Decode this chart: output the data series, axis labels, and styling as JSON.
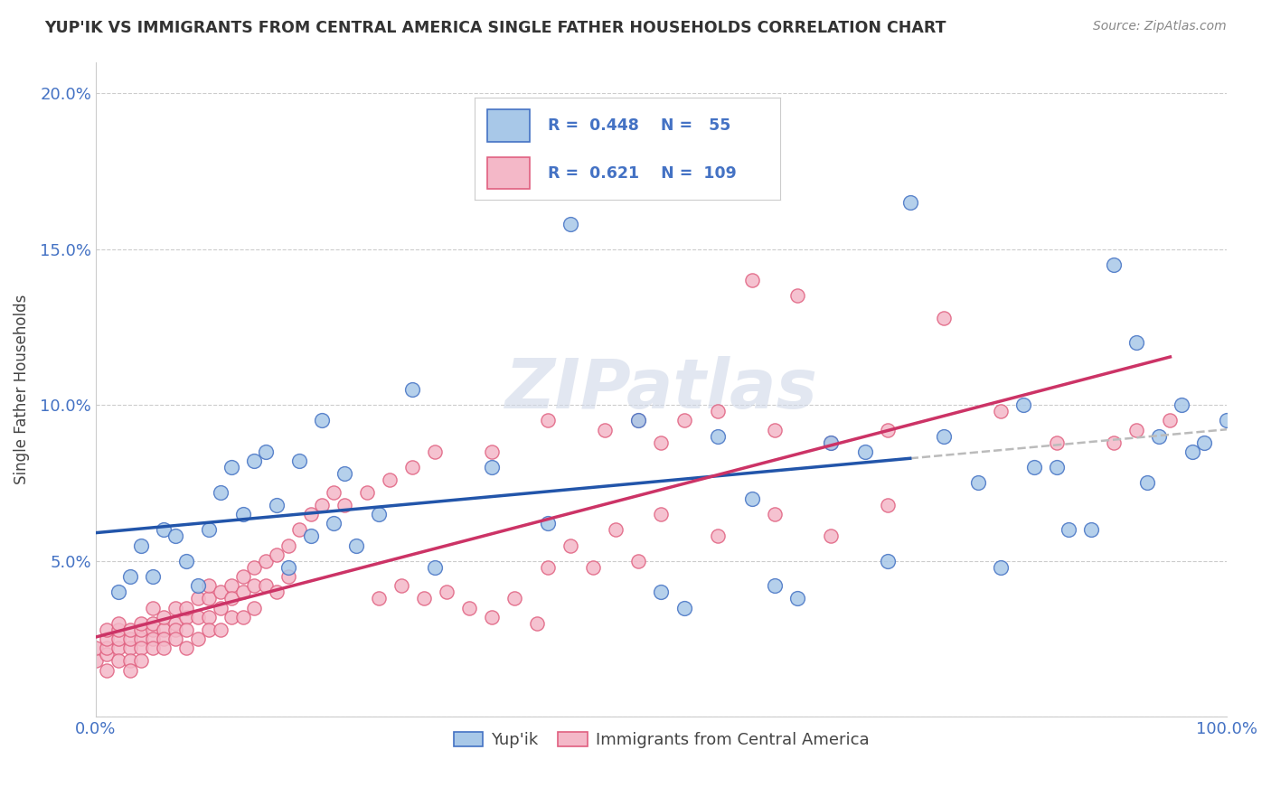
{
  "title": "YUP'IK VS IMMIGRANTS FROM CENTRAL AMERICA SINGLE FATHER HOUSEHOLDS CORRELATION CHART",
  "source": "Source: ZipAtlas.com",
  "ylabel": "Single Father Households",
  "xlim": [
    0,
    1.0
  ],
  "ylim": [
    0,
    0.21
  ],
  "yticks": [
    0.0,
    0.05,
    0.1,
    0.15,
    0.2
  ],
  "ytick_labels": [
    "",
    "5.0%",
    "10.0%",
    "15.0%",
    "20.0%"
  ],
  "xticks": [
    0.0,
    0.25,
    0.5,
    0.75,
    1.0
  ],
  "xtick_labels": [
    "0.0%",
    "",
    "",
    "",
    "100.0%"
  ],
  "legend_blue_R": "0.448",
  "legend_blue_N": "55",
  "legend_pink_R": "0.621",
  "legend_pink_N": "109",
  "blue_fill": "#a8c8e8",
  "blue_edge": "#4472c4",
  "pink_fill": "#f4b8c8",
  "pink_edge": "#e06080",
  "blue_line": "#2255aa",
  "pink_line": "#cc3366",
  "dash_line": "#bbbbbb",
  "watermark_color": "#d0d8e8",
  "blue_x": [
    0.02,
    0.04,
    0.05,
    0.06,
    0.08,
    0.1,
    0.12,
    0.13,
    0.14,
    0.15,
    0.17,
    0.2,
    0.22,
    0.23,
    0.25,
    0.3,
    0.42,
    0.5,
    0.52,
    0.55,
    0.58,
    0.6,
    0.62,
    0.65,
    0.68,
    0.7,
    0.72,
    0.75,
    0.8,
    0.82,
    0.85,
    0.88,
    0.9,
    0.92,
    0.94,
    0.96,
    0.98,
    1.0,
    0.03,
    0.07,
    0.09,
    0.11,
    0.16,
    0.18,
    0.19,
    0.21,
    0.28,
    0.35,
    0.4,
    0.48,
    0.78,
    0.83,
    0.86,
    0.93,
    0.97
  ],
  "blue_y": [
    0.04,
    0.055,
    0.045,
    0.06,
    0.05,
    0.06,
    0.08,
    0.065,
    0.082,
    0.085,
    0.048,
    0.095,
    0.078,
    0.055,
    0.065,
    0.048,
    0.158,
    0.04,
    0.035,
    0.09,
    0.07,
    0.042,
    0.038,
    0.088,
    0.085,
    0.05,
    0.165,
    0.09,
    0.048,
    0.1,
    0.08,
    0.06,
    0.145,
    0.12,
    0.09,
    0.1,
    0.088,
    0.095,
    0.045,
    0.058,
    0.042,
    0.072,
    0.068,
    0.082,
    0.058,
    0.062,
    0.105,
    0.08,
    0.062,
    0.095,
    0.075,
    0.08,
    0.06,
    0.075,
    0.085
  ],
  "pink_x": [
    0.0,
    0.0,
    0.01,
    0.01,
    0.01,
    0.01,
    0.01,
    0.02,
    0.02,
    0.02,
    0.02,
    0.02,
    0.03,
    0.03,
    0.03,
    0.03,
    0.03,
    0.04,
    0.04,
    0.04,
    0.04,
    0.04,
    0.05,
    0.05,
    0.05,
    0.05,
    0.05,
    0.06,
    0.06,
    0.06,
    0.06,
    0.07,
    0.07,
    0.07,
    0.07,
    0.08,
    0.08,
    0.08,
    0.08,
    0.09,
    0.09,
    0.09,
    0.1,
    0.1,
    0.1,
    0.1,
    0.11,
    0.11,
    0.11,
    0.12,
    0.12,
    0.12,
    0.13,
    0.13,
    0.13,
    0.14,
    0.14,
    0.14,
    0.15,
    0.15,
    0.16,
    0.16,
    0.17,
    0.17,
    0.18,
    0.19,
    0.2,
    0.21,
    0.22,
    0.24,
    0.26,
    0.28,
    0.3,
    0.35,
    0.4,
    0.45,
    0.48,
    0.5,
    0.52,
    0.55,
    0.58,
    0.6,
    0.62,
    0.65,
    0.7,
    0.75,
    0.8,
    0.85,
    0.9,
    0.92,
    0.95,
    0.5,
    0.55,
    0.6,
    0.65,
    0.7,
    0.4,
    0.42,
    0.44,
    0.46,
    0.48,
    0.25,
    0.27,
    0.29,
    0.31,
    0.33,
    0.35,
    0.37,
    0.39
  ],
  "pink_y": [
    0.018,
    0.022,
    0.02,
    0.022,
    0.025,
    0.028,
    0.015,
    0.022,
    0.025,
    0.028,
    0.018,
    0.03,
    0.022,
    0.025,
    0.028,
    0.018,
    0.015,
    0.025,
    0.028,
    0.022,
    0.03,
    0.018,
    0.028,
    0.03,
    0.025,
    0.022,
    0.035,
    0.028,
    0.032,
    0.025,
    0.022,
    0.03,
    0.035,
    0.028,
    0.025,
    0.032,
    0.035,
    0.028,
    0.022,
    0.038,
    0.032,
    0.025,
    0.038,
    0.042,
    0.032,
    0.028,
    0.04,
    0.035,
    0.028,
    0.042,
    0.038,
    0.032,
    0.045,
    0.04,
    0.032,
    0.048,
    0.042,
    0.035,
    0.05,
    0.042,
    0.052,
    0.04,
    0.055,
    0.045,
    0.06,
    0.065,
    0.068,
    0.072,
    0.068,
    0.072,
    0.076,
    0.08,
    0.085,
    0.085,
    0.095,
    0.092,
    0.095,
    0.088,
    0.095,
    0.098,
    0.14,
    0.092,
    0.135,
    0.088,
    0.092,
    0.128,
    0.098,
    0.088,
    0.088,
    0.092,
    0.095,
    0.065,
    0.058,
    0.065,
    0.058,
    0.068,
    0.048,
    0.055,
    0.048,
    0.06,
    0.05,
    0.038,
    0.042,
    0.038,
    0.04,
    0.035,
    0.032,
    0.038,
    0.03
  ]
}
